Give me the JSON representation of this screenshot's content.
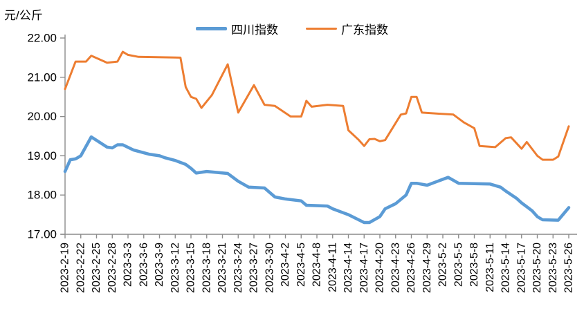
{
  "title": "元/公斤",
  "style": {
    "background": "#FFFFFF",
    "axis_color": "#8C8C8C",
    "text_color": "#000000",
    "sichuan_color": "#5B9BD5",
    "guangdong_color": "#ED7D31"
  },
  "chart_data": {
    "type": "line",
    "unit_label": "元/公斤",
    "grid": false,
    "legend_position": "top-center",
    "y_axis": {
      "min": 17,
      "max": 22,
      "tick_values": [
        22,
        21,
        20,
        19,
        18,
        17
      ],
      "tick_labels": [
        "22.00",
        "21.00",
        "20.00",
        "19.00",
        "18.00",
        "17.00"
      ]
    },
    "x_axis": {
      "note": "daily data from 2023-2-19 to 2023-5-26; axis tick labels every 3 days; vertices given as [days since 2023-2-19, value]",
      "day_range": [
        0,
        96
      ],
      "tick_labels": [
        "2023-2-19",
        "2023-2-22",
        "2023-2-25",
        "2023-2-28",
        "2023-3-3",
        "2023-3-6",
        "2023-3-9",
        "2023-3-12",
        "2023-3-15",
        "2023-3-18",
        "2023-3-21",
        "2023-3-24",
        "2023-3-27",
        "2023-3-30",
        "2023-4-2",
        "2023-4-5",
        "2023-4-8",
        "2023-4-11",
        "2023-4-14",
        "2023-4-17",
        "2023-4-20",
        "2023-4-23",
        "2023-4-26",
        "2023-4-29",
        "2023-5-2",
        "2023-5-5",
        "2023-5-8",
        "2023-5-11",
        "2023-5-14",
        "2023-5-17",
        "2023-5-20",
        "2023-5-23",
        "2023-5-26"
      ]
    },
    "series": [
      {
        "id": "sichuan",
        "name": "四川指数",
        "color": "#5B9BD5",
        "stroke_width": 4.5,
        "values_at_ticks": [
          18.6,
          19.0,
          19.4,
          19.2,
          19.2,
          19.05,
          19.0,
          18.9,
          18.7,
          18.6,
          18.55,
          18.35,
          18.2,
          18.05,
          17.9,
          17.85,
          17.75,
          17.65,
          17.5,
          17.3,
          17.45,
          17.8,
          18.3,
          18.25,
          18.4,
          18.3,
          18.3,
          18.3,
          18.1,
          17.8,
          17.45,
          17.35,
          17.7
        ],
        "vertices": [
          [
            0,
            18.6
          ],
          [
            1,
            18.9
          ],
          [
            2,
            18.92
          ],
          [
            3,
            19.0
          ],
          [
            5,
            19.48
          ],
          [
            8,
            19.22
          ],
          [
            9,
            19.2
          ],
          [
            10,
            19.28
          ],
          [
            11,
            19.28
          ],
          [
            13,
            19.15
          ],
          [
            16,
            19.04
          ],
          [
            18,
            19.0
          ],
          [
            19,
            18.95
          ],
          [
            21,
            18.88
          ],
          [
            23,
            18.78
          ],
          [
            24,
            18.68
          ],
          [
            25,
            18.56
          ],
          [
            27,
            18.6
          ],
          [
            31,
            18.55
          ],
          [
            33,
            18.35
          ],
          [
            35,
            18.2
          ],
          [
            38,
            18.18
          ],
          [
            40,
            17.95
          ],
          [
            42,
            17.9
          ],
          [
            45,
            17.85
          ],
          [
            46,
            17.74
          ],
          [
            50,
            17.72
          ],
          [
            51,
            17.65
          ],
          [
            53,
            17.55
          ],
          [
            54,
            17.5
          ],
          [
            57,
            17.3
          ],
          [
            58,
            17.3
          ],
          [
            60,
            17.45
          ],
          [
            61,
            17.65
          ],
          [
            63,
            17.78
          ],
          [
            65,
            18.0
          ],
          [
            66,
            18.3
          ],
          [
            67,
            18.3
          ],
          [
            69,
            18.25
          ],
          [
            71,
            18.35
          ],
          [
            73,
            18.45
          ],
          [
            75,
            18.3
          ],
          [
            81,
            18.28
          ],
          [
            83,
            18.2
          ],
          [
            84,
            18.1
          ],
          [
            86,
            17.92
          ],
          [
            87,
            17.8
          ],
          [
            89,
            17.6
          ],
          [
            90,
            17.45
          ],
          [
            91,
            17.37
          ],
          [
            94,
            17.36
          ],
          [
            95,
            17.52
          ],
          [
            96,
            17.68
          ]
        ]
      },
      {
        "id": "guangdong",
        "name": "广东指数",
        "color": "#ED7D31",
        "stroke_width": 3,
        "values_at_ticks": [
          20.7,
          21.4,
          21.5,
          21.4,
          21.55,
          21.5,
          21.5,
          21.5,
          20.5,
          20.4,
          21.05,
          20.1,
          20.8,
          20.3,
          20.1,
          20.0,
          20.25,
          20.3,
          19.65,
          19.25,
          19.4,
          19.85,
          20.5,
          20.1,
          20.05,
          19.95,
          19.7,
          19.25,
          19.45,
          19.2,
          19.0,
          18.9,
          19.75
        ],
        "vertices": [
          [
            0,
            20.7
          ],
          [
            2,
            21.4
          ],
          [
            4,
            21.4
          ],
          [
            5,
            21.55
          ],
          [
            8,
            21.37
          ],
          [
            10,
            21.4
          ],
          [
            11,
            21.65
          ],
          [
            12,
            21.57
          ],
          [
            14,
            21.52
          ],
          [
            22,
            21.5
          ],
          [
            23,
            20.75
          ],
          [
            24,
            20.5
          ],
          [
            25,
            20.45
          ],
          [
            26,
            20.22
          ],
          [
            28,
            20.55
          ],
          [
            31,
            21.33
          ],
          [
            33,
            20.1
          ],
          [
            36,
            20.8
          ],
          [
            38,
            20.3
          ],
          [
            40,
            20.27
          ],
          [
            43,
            20.0
          ],
          [
            45,
            20.0
          ],
          [
            46,
            20.4
          ],
          [
            47,
            20.25
          ],
          [
            50,
            20.3
          ],
          [
            53,
            20.27
          ],
          [
            54,
            19.65
          ],
          [
            56,
            19.4
          ],
          [
            57,
            19.25
          ],
          [
            58,
            19.42
          ],
          [
            59,
            19.43
          ],
          [
            60,
            19.37
          ],
          [
            61,
            19.4
          ],
          [
            64,
            20.05
          ],
          [
            65,
            20.08
          ],
          [
            66,
            20.5
          ],
          [
            67,
            20.5
          ],
          [
            68,
            20.1
          ],
          [
            74,
            20.05
          ],
          [
            76,
            19.85
          ],
          [
            78,
            19.7
          ],
          [
            79,
            19.25
          ],
          [
            82,
            19.22
          ],
          [
            84,
            19.45
          ],
          [
            85,
            19.47
          ],
          [
            87,
            19.18
          ],
          [
            88,
            19.35
          ],
          [
            90,
            19.0
          ],
          [
            91,
            18.9
          ],
          [
            93,
            18.9
          ],
          [
            94,
            18.98
          ],
          [
            96,
            19.75
          ]
        ]
      }
    ]
  }
}
